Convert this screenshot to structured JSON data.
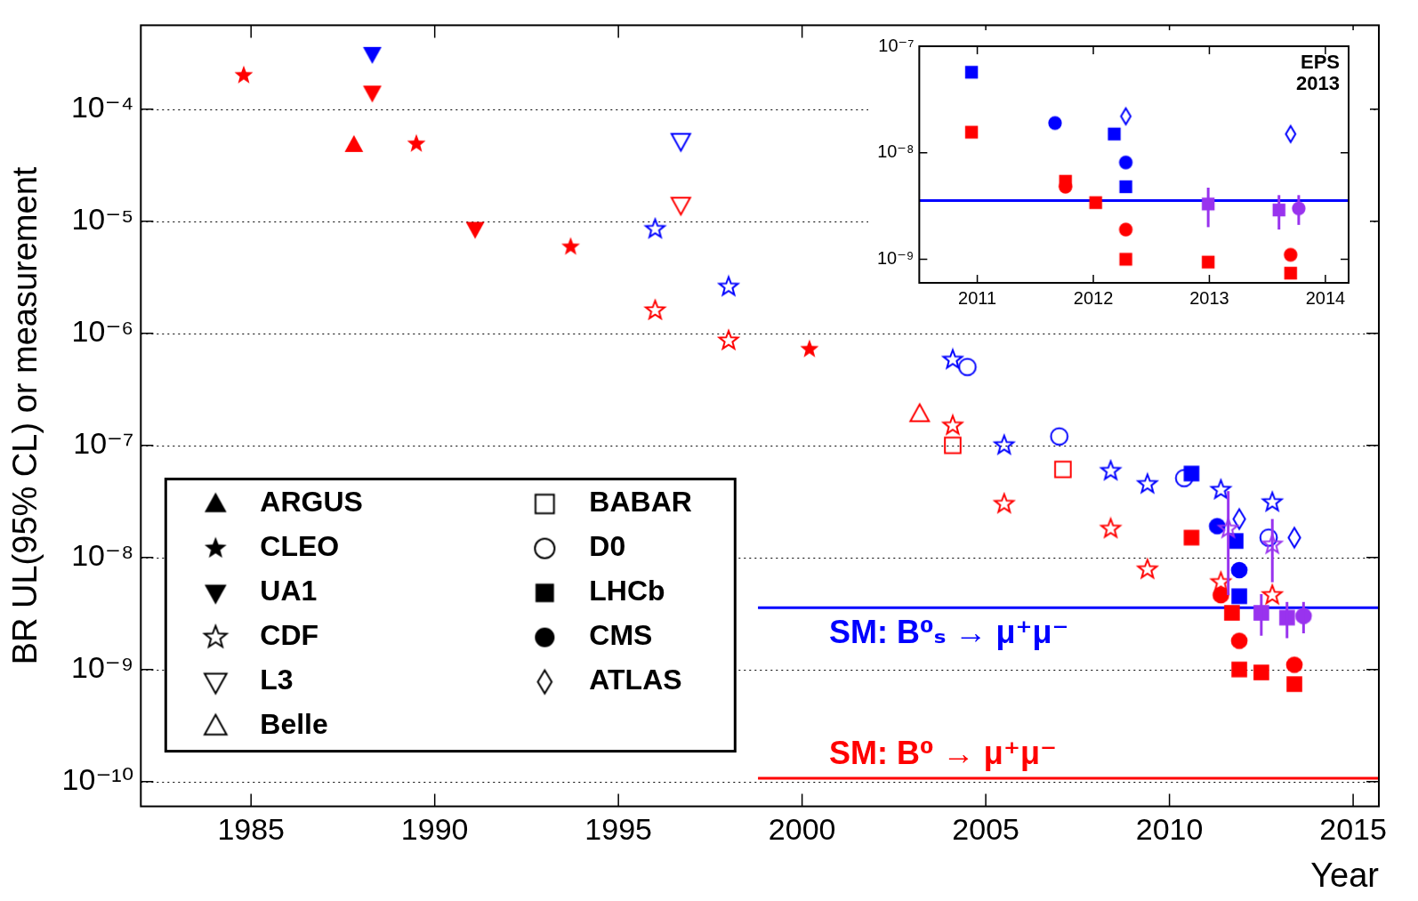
{
  "chart_data": [
    {
      "type": "scatter",
      "y_label": "BR UL(95% CL) or measurement",
      "x_label": "Year",
      "log": "y",
      "grid": true,
      "legend": "lower left",
      "xlim": [
        1982,
        2015.7
      ],
      "xticks": [
        1985,
        1990,
        1995,
        2000,
        2005,
        2010,
        2015
      ],
      "ylim": [
        6e-11,
        0.00056
      ],
      "yticks": [
        {
          "value": 1e-10,
          "label": "10⁻¹⁰"
        },
        {
          "value": 1e-09,
          "label": "10⁻⁹"
        },
        {
          "value": 1e-08,
          "label": "10⁻⁸"
        },
        {
          "value": 1e-07,
          "label": "10⁻⁷"
        },
        {
          "value": 1e-06,
          "label": "10⁻⁶"
        },
        {
          "value": 1e-05,
          "label": "10⁻⁵"
        },
        {
          "value": 0.0001,
          "label": "10⁻⁴"
        }
      ],
      "reference_lines": [
        {
          "text": "SM: B⁰ₛ → μ⁺μ⁻",
          "value": 3.56e-09,
          "start": 1998.8,
          "color": "#0000ff"
        },
        {
          "text": "SM: B⁰ → μ⁺μ⁻",
          "value": 1.07e-10,
          "start": 1998.8,
          "color": "#ff0000"
        }
      ],
      "series": [
        {
          "name": "ARGUS",
          "marker": "triangle",
          "color": "#000000",
          "x": [
            1987.8
          ],
          "values": [
            4.8e-05
          ],
          "colors": [
            "#ff0000"
          ]
        },
        {
          "name": "CLEO",
          "marker": "star",
          "color": "#000000",
          "x": [
            1984.8,
            1989.5,
            1993.7,
            2000.2
          ],
          "values": [
            0.0002,
            4.9e-05,
            5.9e-06,
            7.2e-07
          ],
          "colors": [
            "#ff0000",
            "#ff0000",
            "#ff0000",
            "#ff0000"
          ]
        },
        {
          "name": "UA1",
          "marker": "triangle-down",
          "color": "#000000",
          "x": [
            1988.3,
            1988.3,
            1991.1
          ],
          "values": [
            0.00031,
            0.00014,
            8.5e-06
          ],
          "colors": [
            "#0000ff",
            "#ff0000",
            "#ff0000"
          ]
        },
        {
          "name": "CDF",
          "marker": "star-open",
          "color": "#000000",
          "x": [
            1996.0,
            1996.0,
            1998.0,
            1998.0,
            2004.1,
            2004.1,
            2005.5,
            2005.5,
            2008.4,
            2008.4,
            2009.4,
            2009.4,
            2011.4,
            2011.4,
            2011.6,
            2012.8,
            2012.8,
            2012.8
          ],
          "values": [
            8.5e-06,
            1.6e-06,
            2.6e-06,
            8.6e-07,
            5.8e-07,
            1.5e-07,
            1e-07,
            3e-08,
            5.9e-08,
            1.8e-08,
            4.5e-08,
            7.8e-09,
            4e-08,
            6e-09,
            1.8e-08,
            3.1e-08,
            4.6e-09,
            1.3e-08
          ],
          "colors": [
            "#0000ff",
            "#ff0000",
            "#0000ff",
            "#ff0000",
            "#0000ff",
            "#ff0000",
            "#0000ff",
            "#ff0000",
            "#0000ff",
            "#ff0000",
            "#0000ff",
            "#ff0000",
            "#0000ff",
            "#ff0000",
            "#9933ee",
            "#0000ff",
            "#ff0000",
            "#9933ee"
          ],
          "errors": [
            null,
            null,
            null,
            null,
            null,
            null,
            null,
            null,
            null,
            null,
            null,
            null,
            null,
            null,
            [
              4.6e-09,
              3.9e-08
            ],
            null,
            null,
            [
              6e-09,
              2.2e-08
            ]
          ]
        },
        {
          "name": "L3",
          "marker": "triangle-down-open",
          "color": "#000000",
          "x": [
            1996.7,
            1996.7
          ],
          "values": [
            5.2e-05,
            1.4e-05
          ],
          "colors": [
            "#0000ff",
            "#ff0000"
          ]
        },
        {
          "name": "Belle",
          "marker": "triangle-open",
          "color": "#000000",
          "x": [
            2003.2
          ],
          "values": [
            1.9e-07
          ],
          "colors": [
            "#ff0000"
          ]
        },
        {
          "name": "BABAR",
          "marker": "square-open",
          "color": "#000000",
          "x": [
            2004.1,
            2007.1
          ],
          "values": [
            1e-07,
            6.1e-08
          ],
          "colors": [
            "#ff0000",
            "#ff0000"
          ]
        },
        {
          "name": "D0",
          "marker": "circle-open",
          "color": "#000000",
          "x": [
            2004.5,
            2007.0,
            2010.4,
            2012.7
          ],
          "values": [
            5e-07,
            1.2e-07,
            5.1e-08,
            1.5e-08
          ],
          "colors": [
            "#0000ff",
            "#0000ff",
            "#0000ff",
            "#0000ff"
          ]
        },
        {
          "name": "LHCb",
          "marker": "square",
          "color": "#000000",
          "x": [
            2010.6,
            2010.6,
            2011.8,
            2011.7,
            2011.9,
            2011.9,
            2012.5,
            2012.5,
            2013.2,
            2013.4
          ],
          "values": [
            5.6e-08,
            1.5e-08,
            1.4e-08,
            3.2e-09,
            4.5e-09,
            1e-09,
            3.2e-09,
            9.4e-10,
            2.9e-09,
            7.4e-10
          ],
          "colors": [
            "#0000ff",
            "#ff0000",
            "#0000ff",
            "#ff0000",
            "#0000ff",
            "#ff0000",
            "#9933ee",
            "#ff0000",
            "#9933ee",
            "#ff0000"
          ],
          "errors": [
            null,
            null,
            null,
            null,
            null,
            null,
            [
              2e-09,
              4.7e-09
            ],
            null,
            [
              1.9e-09,
              4e-09
            ],
            null
          ]
        },
        {
          "name": "CMS",
          "marker": "circle",
          "color": "#000000",
          "x": [
            2011.3,
            2011.4,
            2011.9,
            2011.9,
            2013.65,
            2013.4
          ],
          "values": [
            1.9e-08,
            4.6e-09,
            7.7e-09,
            1.8e-09,
            3e-09,
            1.1e-09
          ],
          "colors": [
            "#0000ff",
            "#ff0000",
            "#0000ff",
            "#ff0000",
            "#9933ee",
            "#ff0000"
          ],
          "errors": [
            null,
            null,
            null,
            null,
            [
              2.1e-09,
              4e-09
            ],
            null
          ]
        },
        {
          "name": "ATLAS",
          "marker": "diamond-open",
          "color": "#000000",
          "x": [
            2011.9,
            2013.4
          ],
          "values": [
            2.2e-08,
            1.5e-08
          ],
          "colors": [
            "#0000ff",
            "#0000ff"
          ]
        }
      ]
    },
    {
      "type": "scatter",
      "annotation": "EPS 2013",
      "log": "y",
      "grid": false,
      "xlim": [
        2010.5,
        2014.2
      ],
      "xticks": [
        2011,
        2012,
        2013,
        2014
      ],
      "ylim": [
        6e-10,
        1e-07
      ],
      "yticks": [
        {
          "value": 1e-09,
          "label": "10⁻⁹"
        },
        {
          "value": 1e-08,
          "label": "10⁻⁸"
        },
        {
          "value": 1e-07,
          "label": "10⁻⁷"
        }
      ],
      "reference_lines": [
        {
          "value": 3.56e-09,
          "start": 2010.5,
          "color": "#0000ff"
        }
      ],
      "series": [
        {
          "name": "LHCb",
          "marker": "square",
          "x": [
            2010.95,
            2010.95,
            2011.76,
            2012.02,
            2012.18,
            2012.28,
            2012.28,
            2012.99,
            2012.99,
            2013.6,
            2013.7
          ],
          "values": [
            5.7e-08,
            1.56e-08,
            5.4e-09,
            3.4e-09,
            1.5e-08,
            4.8e-09,
            1e-09,
            3.3e-09,
            9.4e-10,
            2.9e-09,
            7.4e-10
          ],
          "colors": [
            "#0000ff",
            "#ff0000",
            "#ff0000",
            "#ff0000",
            "#0000ff",
            "#0000ff",
            "#ff0000",
            "#9933ee",
            "#ff0000",
            "#9933ee",
            "#ff0000"
          ],
          "errors": [
            null,
            null,
            null,
            null,
            null,
            null,
            null,
            [
              2e-09,
              4.7e-09
            ],
            null,
            [
              1.9e-09,
              4e-09
            ],
            null
          ]
        },
        {
          "name": "CMS",
          "marker": "circle",
          "x": [
            2011.67,
            2011.76,
            2012.28,
            2012.28,
            2013.77,
            2013.7
          ],
          "values": [
            1.9e-08,
            4.8e-09,
            8.1e-09,
            1.9e-09,
            3e-09,
            1.1e-09
          ],
          "colors": [
            "#0000ff",
            "#ff0000",
            "#0000ff",
            "#ff0000",
            "#9933ee",
            "#ff0000"
          ],
          "errors": [
            null,
            null,
            null,
            null,
            [
              2.1e-09,
              4e-09
            ],
            null
          ]
        },
        {
          "name": "ATLAS",
          "marker": "diamond-open",
          "x": [
            2012.28,
            2013.7
          ],
          "values": [
            2.2e-08,
            1.5e-08
          ],
          "colors": [
            "#0000ff",
            "#0000ff"
          ]
        }
      ]
    }
  ]
}
